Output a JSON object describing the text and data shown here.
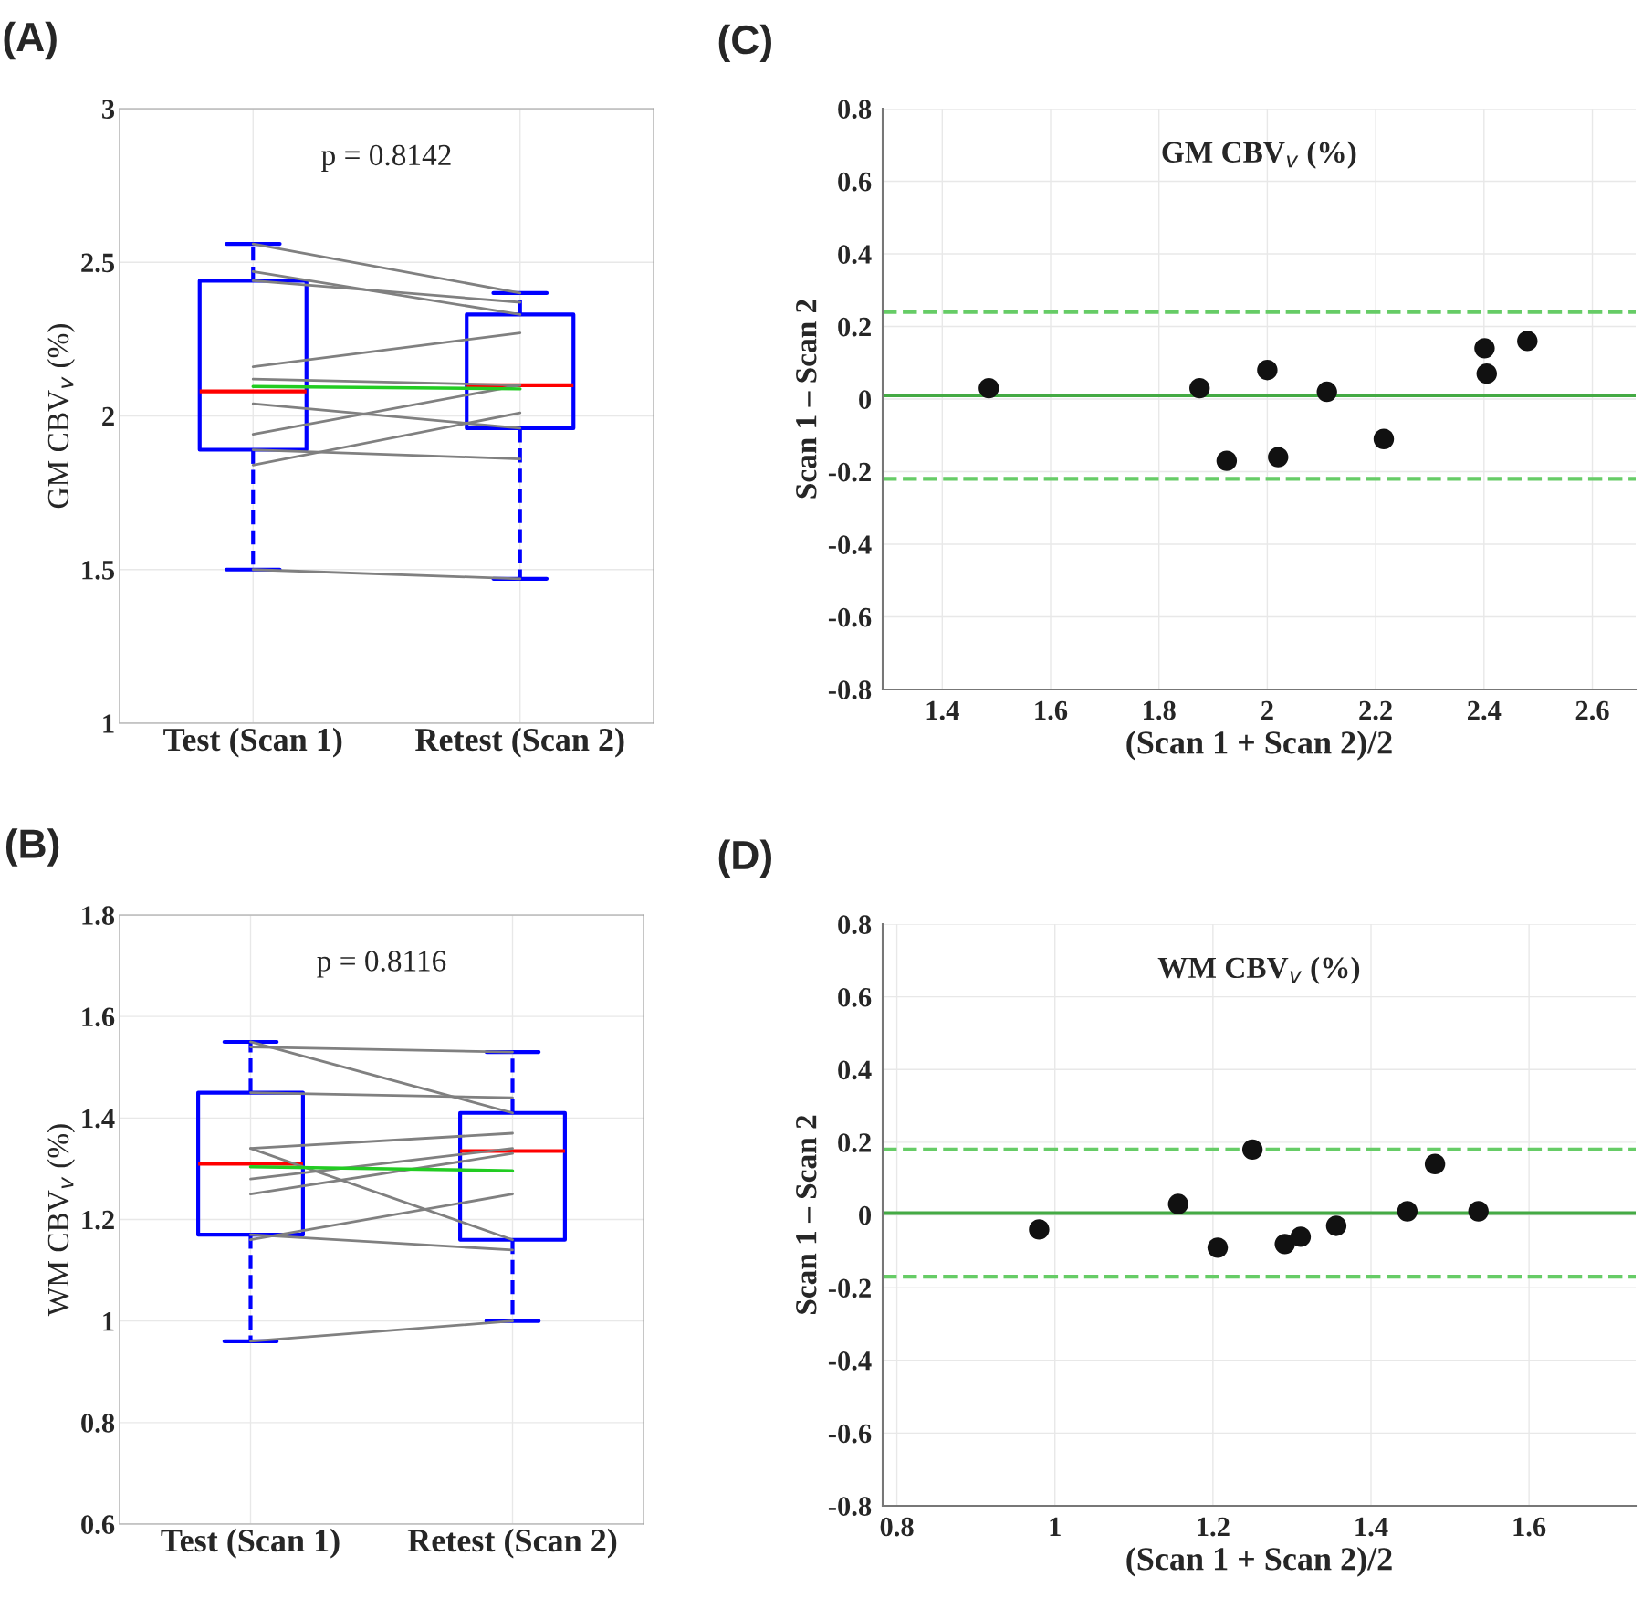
{
  "chart_data": [
    {
      "type": "box",
      "title": "(A)",
      "ylabel": "GM CBV$_{v}$ (%)",
      "categories": [
        "Test (Scan 1)",
        "Retest (Scan 2)"
      ],
      "colors": [
        "#0000ff",
        "#0000ff"
      ],
      "boxes": [
        {
          "low": 1.5,
          "q1": 1.89,
          "median": 2.08,
          "q3": 2.44,
          "high": 2.56
        },
        {
          "low": 1.47,
          "q1": 1.96,
          "median": 2.1,
          "q3": 2.33,
          "high": 2.4
        }
      ],
      "series": [
        {
          "type": "line",
          "color": "#808080",
          "values": [
            2.56,
            2.4
          ]
        },
        {
          "type": "line",
          "color": "#808080",
          "values": [
            2.47,
            2.33
          ]
        },
        {
          "type": "line",
          "color": "#808080",
          "values": [
            2.44,
            2.37
          ]
        },
        {
          "type": "line",
          "color": "#808080",
          "values": [
            1.5,
            1.47
          ]
        },
        {
          "type": "line",
          "color": "#808080",
          "values": [
            1.89,
            1.86
          ]
        },
        {
          "type": "line",
          "color": "#808080",
          "values": [
            1.84,
            2.01
          ]
        },
        {
          "type": "line",
          "color": "#808080",
          "values": [
            2.04,
            1.96
          ]
        },
        {
          "type": "line",
          "color": "#808080",
          "values": [
            1.94,
            2.1
          ]
        },
        {
          "type": "line",
          "color": "#808080",
          "values": [
            2.12,
            2.1
          ]
        },
        {
          "type": "line",
          "color": "#808080",
          "values": [
            2.16,
            2.27
          ]
        },
        {
          "type": "line",
          "color": "#22cc22",
          "values": [
            2.096,
            2.088
          ]
        }
      ],
      "ylim": [
        1,
        3
      ],
      "yticks": [
        1,
        1.5,
        2,
        2.5,
        3
      ],
      "grid": true,
      "marker": "none",
      "annotations": [
        "p = 0.8142"
      ]
    },
    {
      "type": "scatter",
      "title": "(C)",
      "xlabel": "(Scan 1 + Scan 2)/2",
      "ylabel": "Scan 1 – Scan 2",
      "series": [
        {
          "color": "#111111",
          "x": [
            1.486,
            1.875,
            1.925,
            2.0,
            2.02,
            2.11,
            2.215,
            2.401,
            2.405,
            2.48
          ],
          "values": [
            0.03,
            0.03,
            -0.17,
            0.08,
            -0.16,
            0.02,
            -0.11,
            0.14,
            0.07,
            0.16
          ]
        }
      ],
      "ref_lines": [
        {
          "axis": "y",
          "value": 0.01,
          "color": "#44aa44",
          "line_style": "solid"
        },
        {
          "axis": "y",
          "value": 0.24,
          "color": "#66cc66",
          "line_style": "dashed"
        },
        {
          "axis": "y",
          "value": -0.22,
          "color": "#66cc66",
          "line_style": "dashed"
        }
      ],
      "xlim": [
        1.29,
        2.68
      ],
      "xticks": [
        1.4,
        1.6,
        1.8,
        2,
        2.2,
        2.4,
        2.6
      ],
      "ylim": [
        -0.8,
        0.8
      ],
      "yticks": [
        -0.8,
        -0.6,
        -0.4,
        -0.2,
        0,
        0.2,
        0.4,
        0.6,
        0.8
      ],
      "grid": true,
      "marker": "circle",
      "annotations": [
        "GM CBV$_{v}$ (%)"
      ]
    },
    {
      "type": "box",
      "title": "(B)",
      "ylabel": "WM CBV$_{v}$ (%)",
      "categories": [
        "Test (Scan 1)",
        "Retest (Scan 2)"
      ],
      "colors": [
        "#0000ff",
        "#0000ff"
      ],
      "boxes": [
        {
          "low": 0.96,
          "q1": 1.17,
          "median": 1.31,
          "q3": 1.45,
          "high": 1.55
        },
        {
          "low": 1.0,
          "q1": 1.16,
          "median": 1.335,
          "q3": 1.41,
          "high": 1.53
        }
      ],
      "series": [
        {
          "type": "line",
          "color": "#808080",
          "values": [
            0.96,
            1.0
          ]
        },
        {
          "type": "line",
          "color": "#808080",
          "values": [
            1.17,
            1.14
          ]
        },
        {
          "type": "line",
          "color": "#808080",
          "values": [
            1.16,
            1.25
          ]
        },
        {
          "type": "line",
          "color": "#808080",
          "values": [
            1.34,
            1.16
          ]
        },
        {
          "type": "line",
          "color": "#808080",
          "values": [
            1.25,
            1.33
          ]
        },
        {
          "type": "line",
          "color": "#808080",
          "values": [
            1.28,
            1.34
          ]
        },
        {
          "type": "line",
          "color": "#808080",
          "values": [
            1.34,
            1.37
          ]
        },
        {
          "type": "line",
          "color": "#808080",
          "values": [
            1.45,
            1.44
          ]
        },
        {
          "type": "line",
          "color": "#808080",
          "values": [
            1.55,
            1.41
          ]
        },
        {
          "type": "line",
          "color": "#808080",
          "values": [
            1.54,
            1.53
          ]
        },
        {
          "type": "line",
          "color": "#22cc22",
          "values": [
            1.304,
            1.296
          ]
        }
      ],
      "ylim": [
        0.6,
        1.8
      ],
      "yticks": [
        0.6,
        0.8,
        1,
        1.2,
        1.4,
        1.6,
        1.8
      ],
      "grid": true,
      "marker": "none",
      "annotations": [
        "p = 0.8116"
      ]
    },
    {
      "type": "scatter",
      "title": "(D)",
      "xlabel": "(Scan 1 + Scan 2)/2",
      "ylabel": "Scan 1 – Scan 2",
      "series": [
        {
          "color": "#111111",
          "x": [
            0.98,
            1.156,
            1.206,
            1.25,
            1.291,
            1.311,
            1.356,
            1.446,
            1.481,
            1.536
          ],
          "values": [
            -0.04,
            0.03,
            -0.09,
            0.18,
            -0.08,
            -0.06,
            -0.03,
            0.01,
            0.14,
            0.01
          ]
        }
      ],
      "ref_lines": [
        {
          "axis": "y",
          "value": 0.005,
          "color": "#44aa44",
          "line_style": "solid"
        },
        {
          "axis": "y",
          "value": 0.18,
          "color": "#66cc66",
          "line_style": "dashed"
        },
        {
          "axis": "y",
          "value": -0.17,
          "color": "#66cc66",
          "line_style": "dashed"
        }
      ],
      "xlim": [
        0.782,
        1.735
      ],
      "xticks": [
        0.8,
        1,
        1.2,
        1.4,
        1.6
      ],
      "ylim": [
        -0.8,
        0.8
      ],
      "yticks": [
        -0.8,
        -0.6,
        -0.4,
        -0.2,
        0,
        0.2,
        0.4,
        0.6,
        0.8
      ],
      "grid": true,
      "marker": "circle",
      "annotations": [
        "WM CBV$_{v}$ (%)"
      ]
    }
  ]
}
